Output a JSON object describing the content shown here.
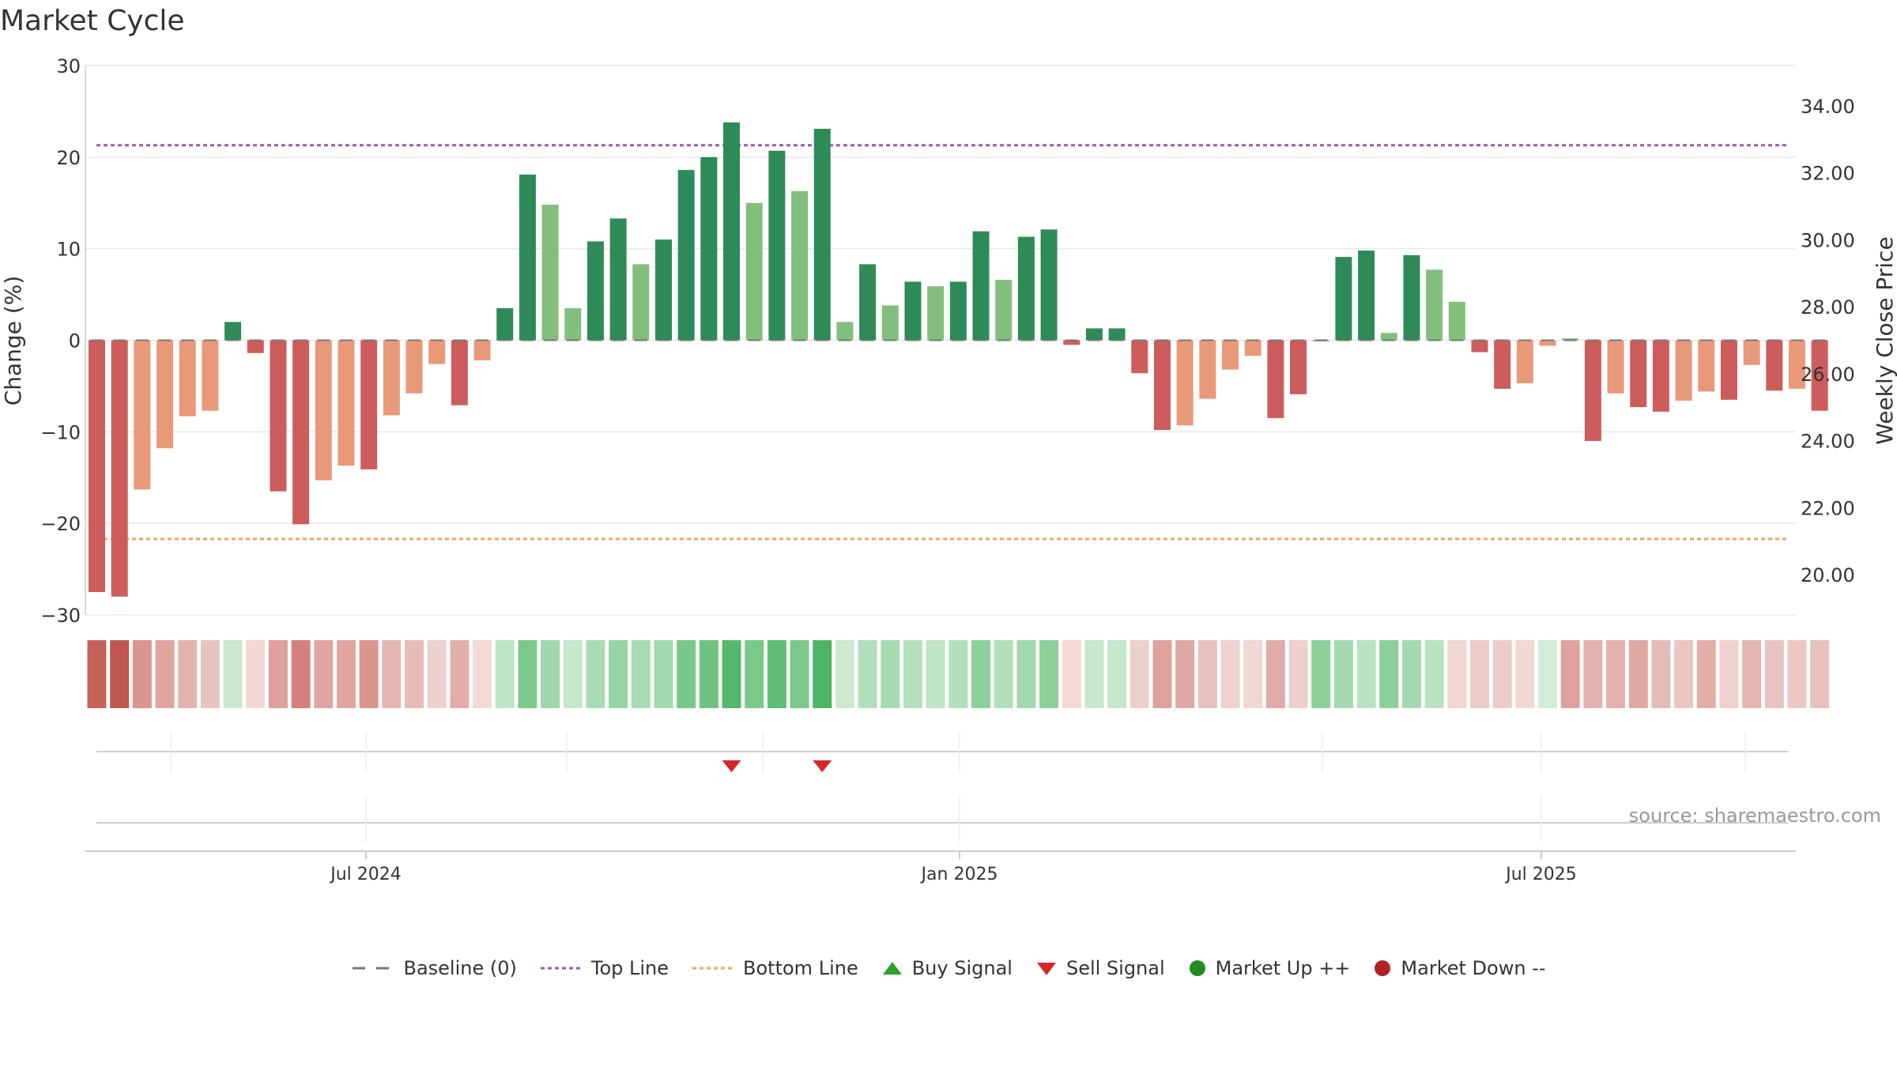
{
  "chart_data": {
    "type": "bar",
    "title": "Market Cycle",
    "ylabel": "Change (%)",
    "y2label": "Weekly Close Price",
    "ylim": [
      -30,
      30
    ],
    "y2lim": [
      18.8,
      35.2
    ],
    "yticks": [
      "30",
      "20",
      "10",
      "0",
      "−10",
      "−20",
      "−30"
    ],
    "y2ticks": [
      "34.00",
      "32.00",
      "30.00",
      "28.00",
      "26.00",
      "24.00",
      "22.00",
      "20.00"
    ],
    "xticks": [
      "Jul 2024",
      "Jan 2025",
      "Jul 2025"
    ],
    "top_line": 21.3,
    "bottom_line": -21.7,
    "source": "source: sharemaestro.com",
    "grid": true,
    "legend_position": "bottom",
    "colors": {
      "strong_up": "#2e8b57",
      "weak_up": "#82bf7d",
      "strong_down": "#cd5c5c",
      "weak_down": "#e8997a",
      "top_line": "#9b59b6",
      "bottom_line": "#f4a460",
      "sell_signal": "#d62728",
      "buy_signal": "#2ca02c"
    },
    "values": [
      -27.5,
      -28,
      -16.3,
      -11.8,
      -8.3,
      -7.7,
      2,
      -1.4,
      -16.5,
      -20.1,
      -15.3,
      -13.7,
      -14.1,
      -8.2,
      -5.8,
      -2.6,
      -7.1,
      -2.2,
      3.5,
      18.1,
      14.8,
      3.5,
      10.8,
      13.3,
      8.3,
      11,
      18.6,
      20,
      23.8,
      15,
      20.7,
      16.3,
      23.1,
      2,
      8.3,
      3.8,
      6.4,
      5.9,
      6.4,
      11.9,
      6.6,
      11.3,
      12.1,
      -0.5,
      1.3,
      1.3,
      -3.6,
      -9.8,
      -9.3,
      -6.4,
      -3.2,
      -1.7,
      -8.5,
      -5.9,
      0,
      9.1,
      9.8,
      0.8,
      9.3,
      7.7,
      4.2,
      -1.3,
      -5.3,
      -4.7,
      -0.6,
      0.2,
      -11,
      -5.8,
      -7.3,
      -7.8,
      -6.6,
      -5.6,
      -6.5,
      -2.7,
      -5.5,
      -5.3,
      -7.7
    ],
    "strength": [
      2,
      2,
      1,
      1,
      1,
      1,
      2,
      2,
      2,
      2,
      1,
      1,
      2,
      1,
      1,
      1,
      2,
      1,
      2,
      2,
      1,
      1,
      2,
      2,
      1,
      2,
      2,
      2,
      2,
      1,
      2,
      1,
      2,
      1,
      2,
      1,
      2,
      1,
      2,
      2,
      1,
      2,
      2,
      2,
      2,
      2,
      2,
      2,
      1,
      1,
      1,
      1,
      2,
      2,
      1,
      2,
      2,
      1,
      2,
      1,
      1,
      2,
      2,
      1,
      1,
      1,
      2,
      1,
      2,
      2,
      1,
      1,
      2,
      1,
      2,
      1,
      2
    ],
    "heat_colors": [
      "#c4625a",
      "#bf5750",
      "#dc948f",
      "#e0a5a1",
      "#e3b3af",
      "#e7c2bf",
      "#c9e8cf",
      "#f1d7d5",
      "#df9f9b",
      "#d4817c",
      "#e0a5a1",
      "#e0a5a1",
      "#dc948f",
      "#e4b6b2",
      "#e5bcb8",
      "#edcfcd",
      "#e2aeaa",
      "#f2d8d6",
      "#bde5c5",
      "#7bc98a",
      "#9fd8aa",
      "#c5e7cb",
      "#a9dbb3",
      "#97d4a3",
      "#a9dbb3",
      "#a3d9ae",
      "#79c889",
      "#6fc381",
      "#55b96b",
      "#7bc98a",
      "#5fbd75",
      "#7bc98a",
      "#4eb466",
      "#cde9d2",
      "#b1dfbb",
      "#a6dab1",
      "#b4e0bd",
      "#bfe4c6",
      "#b1dfbb",
      "#8dd09a",
      "#b1dfbb",
      "#a2d8ad",
      "#8ccf99",
      "#f2d8d6",
      "#c5e7cb",
      "#c5e7cb",
      "#edcfcd",
      "#dea29e",
      "#e0a8a4",
      "#e7c1be",
      "#eed1cf",
      "#f0d6d4",
      "#e1aba7",
      "#edcfcd",
      "#8ccf99",
      "#a4d9af",
      "#b9e2c1",
      "#8ccf99",
      "#a4d9af",
      "#b9e2c1",
      "#f0d6d4",
      "#eccbc8",
      "#ecccc9",
      "#f1d8d6",
      "#d2edd7",
      "#dea29e",
      "#e3b2af",
      "#e3b2af",
      "#e0a8a4",
      "#e5bbb8",
      "#eac6c3",
      "#e2aeaa",
      "#eed1cf",
      "#e4b6b2",
      "#e9c3c0",
      "#ecc8c5",
      "#e7c1be"
    ],
    "sell_signals": [
      28,
      32
    ],
    "buy_signals": [],
    "legend": [
      "Baseline (0)",
      "Top Line",
      "Bottom Line",
      "Buy Signal",
      "Sell Signal",
      "Market Up ++",
      "Market Down --"
    ]
  }
}
